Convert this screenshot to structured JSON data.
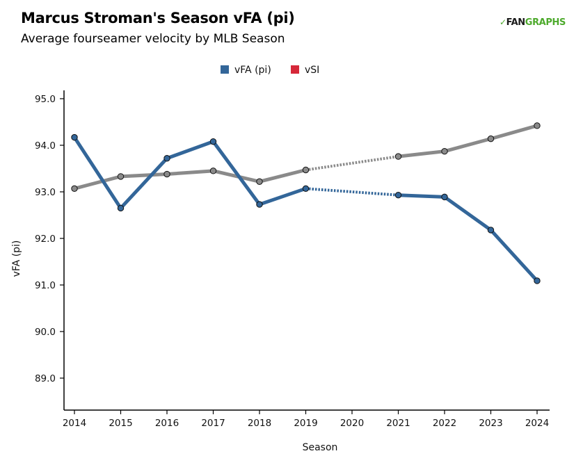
{
  "header": {
    "title": "Marcus Stroman's Season vFA (pi)",
    "subtitle": "Average fourseamer velocity by MLB Season"
  },
  "logo": {
    "part1": "FAN",
    "part2": "GRAPHS"
  },
  "colors": {
    "series_vfa": "#336699",
    "series_vsi": "#d62839",
    "league": "#8a8a8a"
  },
  "chart_data": {
    "type": "line",
    "xlabel": "Season",
    "ylabel": "vFA (pi)",
    "x": [
      2014,
      2015,
      2016,
      2017,
      2018,
      2019,
      2020,
      2021,
      2022,
      2023,
      2024
    ],
    "x_tick_labels": [
      "2014",
      "2015",
      "2016",
      "2017",
      "2018",
      "2019",
      "2020",
      "2021",
      "2022",
      "2023",
      "2024"
    ],
    "ylim": [
      88.5,
      95.0
    ],
    "y_ticks": [
      89.0,
      90.0,
      91.0,
      92.0,
      93.0,
      94.0,
      95.0
    ],
    "y_tick_labels": [
      "89.0",
      "90.0",
      "91.0",
      "92.0",
      "93.0",
      "94.0",
      "95.0"
    ],
    "legend": [
      {
        "label": "vFA (pi)",
        "color": "#336699"
      },
      {
        "label": "vSI",
        "color": "#d62839"
      }
    ],
    "legend_position": "top-center",
    "grid": false,
    "series": [
      {
        "name": "vFA (pi)",
        "color": "#336699",
        "points": [
          {
            "x": 2014,
            "y": 94.17
          },
          {
            "x": 2015,
            "y": 92.65
          },
          {
            "x": 2016,
            "y": 93.72
          },
          {
            "x": 2017,
            "y": 94.08
          },
          {
            "x": 2018,
            "y": 92.73
          },
          {
            "x": 2019,
            "y": 93.07
          },
          {
            "x": 2021,
            "y": 92.93
          },
          {
            "x": 2022,
            "y": 92.89
          },
          {
            "x": 2023,
            "y": 92.18
          },
          {
            "x": 2024,
            "y": 91.09
          }
        ]
      },
      {
        "color": "#8a8a8a",
        "points": [
          {
            "x": 2014,
            "y": 93.07
          },
          {
            "x": 2015,
            "y": 93.33
          },
          {
            "x": 2016,
            "y": 93.38
          },
          {
            "x": 2017,
            "y": 93.45
          },
          {
            "x": 2018,
            "y": 93.22
          },
          {
            "x": 2019,
            "y": 93.47
          },
          {
            "x": 2021,
            "y": 93.76
          },
          {
            "x": 2022,
            "y": 93.87
          },
          {
            "x": 2023,
            "y": 94.14
          },
          {
            "x": 2024,
            "y": 94.42
          }
        ]
      }
    ]
  }
}
